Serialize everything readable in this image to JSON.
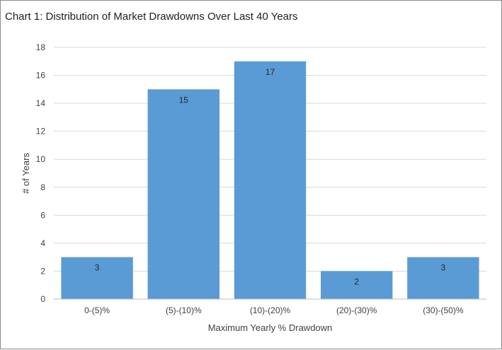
{
  "chart_data": {
    "type": "bar",
    "title": "Chart 1: Distribution of Market Drawdowns Over Last 40 Years",
    "categories": [
      "0-(5)%",
      "(5)-(10)%",
      "(10)-(20)%",
      "(20)-(30)%",
      "(30)-(50)%"
    ],
    "values": [
      3,
      15,
      17,
      2,
      3
    ],
    "xlabel": "Maximum Yearly % Drawdown",
    "ylabel": "# of Years",
    "ylim": [
      0,
      18
    ],
    "yticks": [
      0,
      2,
      4,
      6,
      8,
      10,
      12,
      14,
      16,
      18
    ],
    "grid": true,
    "legend": "none",
    "data_labels": true,
    "colors": {
      "bar": "#5b9bd5",
      "gridline": "#d9d9d9",
      "axis": "#bfbfbf",
      "frame": "#8c8c8c"
    }
  }
}
